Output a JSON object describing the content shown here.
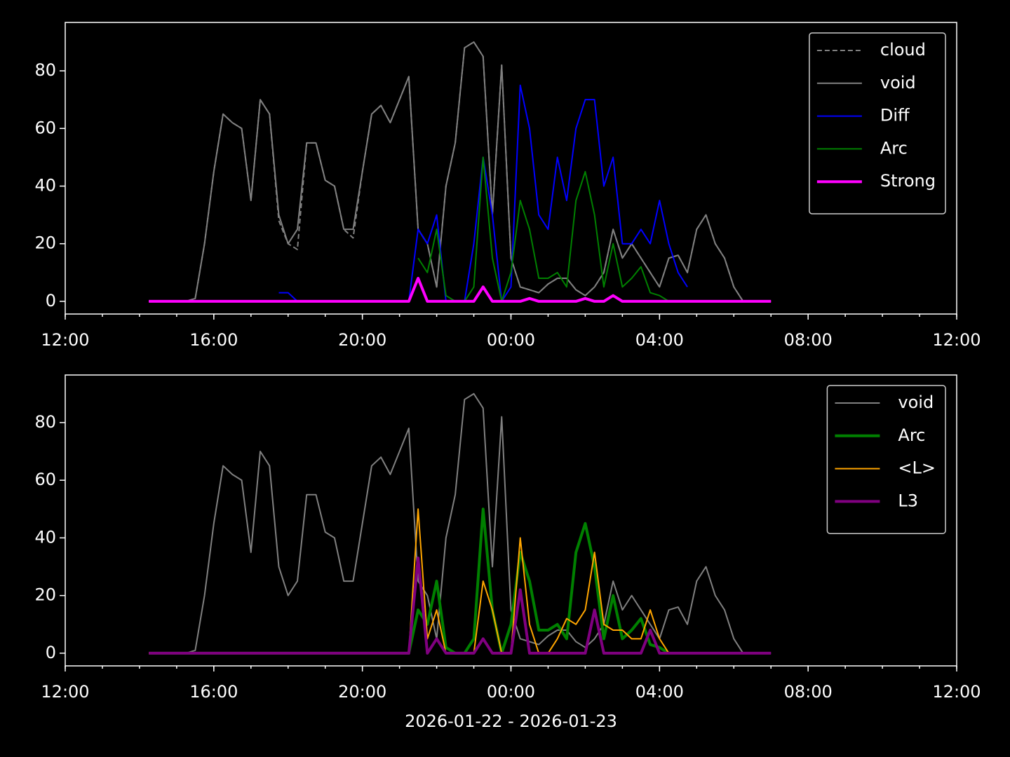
{
  "chart_data": [
    {
      "type": "line",
      "x": [
        "2026-01-22 14:15",
        "2026-01-22 14:30",
        "2026-01-22 14:45",
        "2026-01-22 15:00",
        "2026-01-22 15:15",
        "2026-01-22 15:30",
        "2026-01-22 15:45",
        "2026-01-22 16:00",
        "2026-01-22 16:15",
        "2026-01-22 16:30",
        "2026-01-22 16:45",
        "2026-01-22 17:00",
        "2026-01-22 17:15",
        "2026-01-22 17:30",
        "2026-01-22 17:45",
        "2026-01-22 18:00",
        "2026-01-22 18:15",
        "2026-01-22 18:30",
        "2026-01-22 18:45",
        "2026-01-22 19:00",
        "2026-01-22 19:15",
        "2026-01-22 19:30",
        "2026-01-22 19:45",
        "2026-01-22 20:00",
        "2026-01-22 20:15",
        "2026-01-22 20:30",
        "2026-01-22 20:45",
        "2026-01-22 21:00",
        "2026-01-22 21:15",
        "2026-01-22 21:30",
        "2026-01-22 21:45",
        "2026-01-22 22:00",
        "2026-01-22 22:15",
        "2026-01-22 22:30",
        "2026-01-22 22:45",
        "2026-01-22 23:00",
        "2026-01-22 23:15",
        "2026-01-22 23:30",
        "2026-01-22 23:45",
        "2026-01-23 00:00",
        "2026-01-23 00:15",
        "2026-01-23 00:30",
        "2026-01-23 00:45",
        "2026-01-23 01:00",
        "2026-01-23 01:15",
        "2026-01-23 01:30",
        "2026-01-23 01:45",
        "2026-01-23 02:00",
        "2026-01-23 02:15",
        "2026-01-23 02:30",
        "2026-01-23 02:45",
        "2026-01-23 03:00",
        "2026-01-23 03:15",
        "2026-01-23 03:30",
        "2026-01-23 03:45",
        "2026-01-23 04:00",
        "2026-01-23 04:15",
        "2026-01-23 04:30",
        "2026-01-23 04:45",
        "2026-01-23 05:00",
        "2026-01-23 05:15",
        "2026-01-23 05:30",
        "2026-01-23 05:45",
        "2026-01-23 06:00",
        "2026-01-23 06:15",
        "2026-01-23 06:30",
        "2026-01-23 06:45",
        "2026-01-23 07:00"
      ],
      "series": [
        {
          "name": "cloud",
          "color": "#808080",
          "linewidth": 2,
          "linestyle": "dashed",
          "values": [
            0,
            0,
            0,
            0,
            0,
            1,
            20,
            45,
            65,
            62,
            60,
            35,
            70,
            65,
            28,
            20,
            18,
            55,
            55,
            42,
            40,
            25,
            22,
            45,
            65,
            68,
            62,
            70,
            78,
            25,
            20,
            5,
            40,
            55,
            88,
            90,
            85,
            30,
            82,
            15,
            5,
            4,
            3,
            6,
            8,
            8,
            4,
            2,
            5,
            10,
            25,
            15,
            20,
            15,
            10,
            5,
            15,
            16,
            10,
            25,
            30,
            20,
            15,
            5,
            0,
            0,
            0,
            0
          ]
        },
        {
          "name": "void",
          "color": "#808080",
          "linewidth": 2,
          "linestyle": "solid",
          "values": [
            0,
            0,
            0,
            0,
            0,
            1,
            20,
            45,
            65,
            62,
            60,
            35,
            70,
            65,
            30,
            20,
            25,
            55,
            55,
            42,
            40,
            25,
            25,
            45,
            65,
            68,
            62,
            70,
            78,
            25,
            20,
            5,
            40,
            55,
            88,
            90,
            85,
            30,
            82,
            15,
            5,
            4,
            3,
            6,
            8,
            8,
            4,
            2,
            5,
            10,
            25,
            15,
            20,
            15,
            10,
            5,
            15,
            16,
            10,
            25,
            30,
            20,
            15,
            5,
            0,
            0,
            0,
            0
          ]
        },
        {
          "name": "Diff",
          "color": "#0000ff",
          "linewidth": 2,
          "linestyle": "solid",
          "values": [
            null,
            null,
            null,
            null,
            null,
            null,
            null,
            null,
            null,
            null,
            null,
            null,
            null,
            null,
            3,
            3,
            0,
            0,
            0,
            0,
            0,
            0,
            0,
            0,
            0,
            0,
            0,
            0,
            0,
            25,
            20,
            30,
            0,
            0,
            0,
            20,
            50,
            30,
            0,
            5,
            75,
            60,
            30,
            25,
            50,
            35,
            60,
            70,
            70,
            40,
            50,
            20,
            20,
            25,
            20,
            35,
            20,
            10,
            5,
            null,
            null,
            null,
            null,
            null,
            null,
            null,
            null,
            null
          ]
        },
        {
          "name": "Arc",
          "color": "#008000",
          "linewidth": 2,
          "linestyle": "solid",
          "values": [
            null,
            null,
            null,
            null,
            null,
            null,
            null,
            null,
            null,
            null,
            null,
            null,
            null,
            null,
            null,
            null,
            null,
            null,
            null,
            null,
            null,
            null,
            null,
            null,
            null,
            null,
            null,
            null,
            null,
            15,
            10,
            25,
            2,
            0,
            0,
            5,
            50,
            15,
            0,
            10,
            35,
            25,
            8,
            8,
            10,
            5,
            35,
            45,
            30,
            5,
            20,
            5,
            8,
            12,
            3,
            2,
            0,
            null,
            null,
            null,
            null,
            null,
            null,
            null,
            null,
            null,
            null,
            null
          ]
        },
        {
          "name": "Strong",
          "color": "#ff00ff",
          "linewidth": 4,
          "linestyle": "solid",
          "values": [
            0,
            0,
            0,
            0,
            0,
            0,
            0,
            0,
            0,
            0,
            0,
            0,
            0,
            0,
            0,
            0,
            0,
            0,
            0,
            0,
            0,
            0,
            0,
            0,
            0,
            0,
            0,
            0,
            0,
            8,
            0,
            0,
            0,
            0,
            0,
            0,
            5,
            0,
            0,
            0,
            0,
            1,
            0,
            0,
            0,
            0,
            0,
            1,
            0,
            0,
            2,
            0,
            0,
            0,
            0,
            0,
            0,
            0,
            0,
            0,
            0,
            0,
            0,
            0,
            0,
            0,
            0,
            0
          ]
        }
      ],
      "xlim": [
        "2026-01-22 12:00",
        "2026-01-23 12:00"
      ],
      "xticks": [
        {
          "value": "2026-01-22 12:00",
          "label": "12:00"
        },
        {
          "value": "2026-01-22 16:00",
          "label": "16:00"
        },
        {
          "value": "2026-01-22 20:00",
          "label": "20:00"
        },
        {
          "value": "2026-01-23 00:00",
          "label": "00:00"
        },
        {
          "value": "2026-01-23 04:00",
          "label": "04:00"
        },
        {
          "value": "2026-01-23 08:00",
          "label": "08:00"
        },
        {
          "value": "2026-01-23 12:00",
          "label": "12:00"
        }
      ],
      "ylim": [
        -4.4,
        96.8
      ],
      "yticks": [
        0,
        20,
        40,
        60,
        80
      ],
      "legend": "upper right"
    },
    {
      "type": "line",
      "x": [
        "2026-01-22 14:15",
        "2026-01-22 14:30",
        "2026-01-22 14:45",
        "2026-01-22 15:00",
        "2026-01-22 15:15",
        "2026-01-22 15:30",
        "2026-01-22 15:45",
        "2026-01-22 16:00",
        "2026-01-22 16:15",
        "2026-01-22 16:30",
        "2026-01-22 16:45",
        "2026-01-22 17:00",
        "2026-01-22 17:15",
        "2026-01-22 17:30",
        "2026-01-22 17:45",
        "2026-01-22 18:00",
        "2026-01-22 18:15",
        "2026-01-22 18:30",
        "2026-01-22 18:45",
        "2026-01-22 19:00",
        "2026-01-22 19:15",
        "2026-01-22 19:30",
        "2026-01-22 19:45",
        "2026-01-22 20:00",
        "2026-01-22 20:15",
        "2026-01-22 20:30",
        "2026-01-22 20:45",
        "2026-01-22 21:00",
        "2026-01-22 21:15",
        "2026-01-22 21:30",
        "2026-01-22 21:45",
        "2026-01-22 22:00",
        "2026-01-22 22:15",
        "2026-01-22 22:30",
        "2026-01-22 22:45",
        "2026-01-22 23:00",
        "2026-01-22 23:15",
        "2026-01-22 23:30",
        "2026-01-22 23:45",
        "2026-01-23 00:00",
        "2026-01-23 00:15",
        "2026-01-23 00:30",
        "2026-01-23 00:45",
        "2026-01-23 01:00",
        "2026-01-23 01:15",
        "2026-01-23 01:30",
        "2026-01-23 01:45",
        "2026-01-23 02:00",
        "2026-01-23 02:15",
        "2026-01-23 02:30",
        "2026-01-23 02:45",
        "2026-01-23 03:00",
        "2026-01-23 03:15",
        "2026-01-23 03:30",
        "2026-01-23 03:45",
        "2026-01-23 04:00",
        "2026-01-23 04:15",
        "2026-01-23 04:30",
        "2026-01-23 04:45",
        "2026-01-23 05:00",
        "2026-01-23 05:15",
        "2026-01-23 05:30",
        "2026-01-23 05:45",
        "2026-01-23 06:00",
        "2026-01-23 06:15",
        "2026-01-23 06:30",
        "2026-01-23 06:45",
        "2026-01-23 07:00"
      ],
      "series": [
        {
          "name": "void",
          "color": "#808080",
          "linewidth": 2,
          "linestyle": "solid",
          "values": [
            0,
            0,
            0,
            0,
            0,
            1,
            20,
            45,
            65,
            62,
            60,
            35,
            70,
            65,
            30,
            20,
            25,
            55,
            55,
            42,
            40,
            25,
            25,
            45,
            65,
            68,
            62,
            70,
            78,
            25,
            20,
            5,
            40,
            55,
            88,
            90,
            85,
            30,
            82,
            15,
            5,
            4,
            3,
            6,
            8,
            8,
            4,
            2,
            5,
            10,
            25,
            15,
            20,
            15,
            10,
            5,
            15,
            16,
            10,
            25,
            30,
            20,
            15,
            5,
            0,
            0,
            0,
            0
          ]
        },
        {
          "name": "Arc",
          "color": "#008000",
          "linewidth": 4,
          "linestyle": "solid",
          "values": [
            0,
            0,
            0,
            0,
            0,
            0,
            0,
            0,
            0,
            0,
            0,
            0,
            0,
            0,
            0,
            0,
            0,
            0,
            0,
            0,
            0,
            0,
            0,
            0,
            0,
            0,
            0,
            0,
            0,
            15,
            10,
            25,
            2,
            0,
            0,
            5,
            50,
            15,
            0,
            10,
            35,
            25,
            8,
            8,
            10,
            5,
            35,
            45,
            30,
            5,
            20,
            5,
            8,
            12,
            3,
            2,
            0,
            null,
            null,
            null,
            null,
            null,
            null,
            null,
            null,
            null,
            null,
            null
          ]
        },
        {
          "name": "<L>",
          "color": "#ffa500",
          "linewidth": 2,
          "linestyle": "solid",
          "values": [
            0,
            0,
            0,
            0,
            0,
            0,
            0,
            0,
            0,
            0,
            0,
            0,
            0,
            0,
            0,
            0,
            0,
            0,
            0,
            0,
            0,
            0,
            0,
            0,
            0,
            0,
            0,
            0,
            0,
            50,
            5,
            15,
            0,
            0,
            0,
            0,
            25,
            15,
            0,
            0,
            40,
            10,
            0,
            0,
            5,
            12,
            10,
            15,
            35,
            10,
            8,
            8,
            5,
            5,
            15,
            5,
            0,
            null,
            null,
            null,
            null,
            null,
            null,
            null,
            null,
            null,
            null,
            null
          ]
        },
        {
          "name": "L3",
          "color": "#800080",
          "linewidth": 4,
          "linestyle": "solid",
          "values": [
            0,
            0,
            0,
            0,
            0,
            0,
            0,
            0,
            0,
            0,
            0,
            0,
            0,
            0,
            0,
            0,
            0,
            0,
            0,
            0,
            0,
            0,
            0,
            0,
            0,
            0,
            0,
            0,
            0,
            33,
            0,
            5,
            0,
            0,
            0,
            0,
            5,
            0,
            0,
            0,
            22,
            0,
            0,
            0,
            0,
            0,
            0,
            0,
            15,
            0,
            0,
            0,
            0,
            0,
            8,
            0,
            0,
            0,
            0,
            0,
            0,
            0,
            0,
            0,
            0,
            0,
            0,
            0
          ]
        }
      ],
      "xlim": [
        "2026-01-22 12:00",
        "2026-01-23 12:00"
      ],
      "xticks": [
        {
          "value": "2026-01-22 12:00",
          "label": "12:00"
        },
        {
          "value": "2026-01-22 16:00",
          "label": "16:00"
        },
        {
          "value": "2026-01-22 20:00",
          "label": "20:00"
        },
        {
          "value": "2026-01-23 00:00",
          "label": "00:00"
        },
        {
          "value": "2026-01-23 04:00",
          "label": "04:00"
        },
        {
          "value": "2026-01-23 08:00",
          "label": "08:00"
        },
        {
          "value": "2026-01-23 12:00",
          "label": "12:00"
        }
      ],
      "ylim": [
        -4.4,
        96.5
      ],
      "yticks": [
        0,
        20,
        40,
        60,
        80
      ],
      "legend": "upper right",
      "xlabel": "2026-01-22 - 2026-01-23"
    }
  ]
}
